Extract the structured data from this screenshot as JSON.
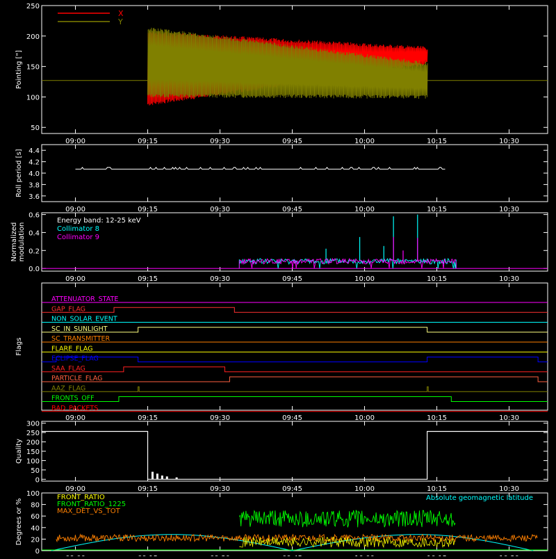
{
  "colors": {
    "background": "#000000",
    "axes": "#ffffff",
    "x_series": "#ff0000",
    "y_series": "#808000",
    "collimator8": "#00ffff",
    "collimator9": "#ff00ff",
    "front_ratio": "#ffff00",
    "front_ratio_1225": "#00ff00",
    "max_det_vs_tot": "#ff8000",
    "geomag_lat": "#00ffff"
  },
  "time_ticks": [
    "09:00",
    "09:15",
    "09:30",
    "09:45",
    "10:00",
    "10:15",
    "10:30"
  ],
  "chart_data": [
    {
      "type": "line",
      "id": "pointing",
      "ylabel": "Pointing [\"]",
      "ylim": [
        40,
        250
      ],
      "yticks": [
        "50",
        "100",
        "150",
        "200",
        "250"
      ],
      "ytick_values": [
        50,
        100,
        150,
        200,
        250
      ],
      "legend": {
        "placement": "top-left"
      },
      "series": [
        {
          "name": "X",
          "color": "#ff0000",
          "baseline": 127,
          "active": [
            "09:15",
            "10:13"
          ],
          "start_range": [
            88,
            205
          ],
          "end_range": [
            155,
            180
          ]
        },
        {
          "name": "Y",
          "color": "#808000",
          "baseline": 127,
          "active": [
            "09:15",
            "10:13"
          ],
          "start_range": [
            102,
            212
          ],
          "end_range": [
            100,
            155
          ]
        }
      ]
    },
    {
      "type": "line",
      "id": "roll",
      "ylabel": "Roll period [s]",
      "ylim": [
        3.5,
        4.5
      ],
      "yticks": [
        "3.6",
        "3.8",
        "4.0",
        "4.2",
        "4.4"
      ],
      "ytick_values": [
        3.6,
        3.8,
        4.0,
        4.2,
        4.4
      ],
      "series": [
        {
          "name": "",
          "color": "#ffffff",
          "value": 4.07,
          "range": [
            "09:00",
            "10:17"
          ]
        }
      ]
    },
    {
      "type": "line",
      "id": "modulation",
      "ylabel_lines": [
        "Normalized",
        "modulation"
      ],
      "ylim": [
        -0.03,
        0.62
      ],
      "yticks": [
        "0.0",
        "0.2",
        "0.4",
        "0.6"
      ],
      "ytick_values": [
        0,
        0.2,
        0.4,
        0.6
      ],
      "annotation": "Energy band: 12-25 keV",
      "series": [
        {
          "name": "Collimator 8",
          "color": "#00ffff",
          "active": [
            "09:34",
            "10:19"
          ],
          "level": 0.08,
          "spikes": [
            [
              "09:52",
              0.22
            ],
            [
              "09:59",
              0.35
            ],
            [
              "10:04",
              0.25
            ],
            [
              "10:06",
              0.58
            ],
            [
              "10:11",
              0.6
            ]
          ]
        },
        {
          "name": "Collimator 9",
          "color": "#ff00ff",
          "active": [
            "09:34",
            "10:19"
          ],
          "level": 0.08,
          "spikes": [
            [
              "10:06",
              0.35
            ],
            [
              "10:08",
              0.2
            ],
            [
              "10:11",
              0.34
            ]
          ]
        }
      ]
    },
    {
      "type": "line",
      "id": "flags",
      "ylabel": "Flags",
      "flags": [
        {
          "name": "ATTENUATOR_STATE",
          "color": "#ff00ff",
          "segments": []
        },
        {
          "name": "GAP_FLAG",
          "color": "#ff3030",
          "segments": [
            [
              "09:08",
              "09:33"
            ]
          ]
        },
        {
          "name": "NON_SOLAR_EVENT",
          "color": "#00ffff",
          "segments": []
        },
        {
          "name": "SC_IN_SUNLIGHT",
          "color": "#ffff80",
          "segments": [
            [
              "09:13",
              "10:13"
            ]
          ]
        },
        {
          "name": "SC_TRANSMITTER",
          "color": "#ff8000",
          "segments": []
        },
        {
          "name": "FLARE_FLAG",
          "color": "#ffff00",
          "segments": []
        },
        {
          "name": "ECLIPSE_FLAG",
          "color": "#0000ff",
          "segments": [
            [
              "08:56",
              "09:13"
            ],
            [
              "10:13",
              "10:36"
            ]
          ]
        },
        {
          "name": "SAA_FLAG",
          "color": "#ff2020",
          "segments": [
            [
              "09:10",
              "09:31"
            ]
          ]
        },
        {
          "name": "PARTICLE_FLAG",
          "color": "#ff6040",
          "segments": [
            [
              "09:32",
              "10:36"
            ]
          ]
        },
        {
          "name": "AAZ_FLAG",
          "color": "#808000",
          "segments": [
            [
              "09:13",
              "09:13"
            ],
            [
              "10:13",
              "10:13"
            ]
          ]
        },
        {
          "name": "FRONTS_OFF",
          "color": "#00ff00",
          "segments": [
            [
              "09:09",
              "10:18"
            ]
          ]
        },
        {
          "name": "BAD_PACKETS",
          "color": "#ff0000",
          "segments": []
        }
      ]
    },
    {
      "type": "line",
      "id": "quality",
      "ylabel": "Quality",
      "ylim": [
        -10,
        310
      ],
      "yticks": [
        "0",
        "50",
        "100",
        "150",
        "200",
        "250",
        "300"
      ],
      "ytick_values": [
        0,
        50,
        100,
        150,
        200,
        250,
        300
      ],
      "series": [
        {
          "name": "",
          "color": "#ffffff",
          "high": 256,
          "low": 0,
          "low_range": [
            "09:15",
            "10:13"
          ],
          "bumps": [
            [
              "09:16",
              40
            ],
            [
              "09:17",
              30
            ],
            [
              "09:18",
              20
            ],
            [
              "09:19",
              15
            ],
            [
              "09:21",
              10
            ]
          ]
        }
      ]
    },
    {
      "type": "line",
      "id": "lat",
      "ylabel": "Degrees or %",
      "ylim": [
        0,
        100
      ],
      "yticks": [
        "0",
        "20",
        "40",
        "60",
        "80",
        "100"
      ],
      "ytick_values": [
        0,
        20,
        40,
        60,
        80,
        100
      ],
      "series": [
        {
          "name": "FRONT_RATIO",
          "color": "#ffff00",
          "level": 15,
          "active": [
            "09:34",
            "10:19"
          ]
        },
        {
          "name": "FRONT_RATIO_1225",
          "color": "#00ff00",
          "level": 55,
          "active": [
            "09:34",
            "10:19"
          ]
        },
        {
          "name": "MAX_DET_VS_TOT",
          "color": "#ff8000",
          "level": 22,
          "active": [
            "08:56",
            "10:36"
          ]
        },
        {
          "name": "Absolute geomagnetic latitude",
          "color": "#00ffff",
          "peaks": [
            "09:20",
            "10:11"
          ],
          "troughs": [
            "08:55",
            "09:45",
            "10:35"
          ],
          "max": 28,
          "min": 0
        }
      ]
    }
  ]
}
